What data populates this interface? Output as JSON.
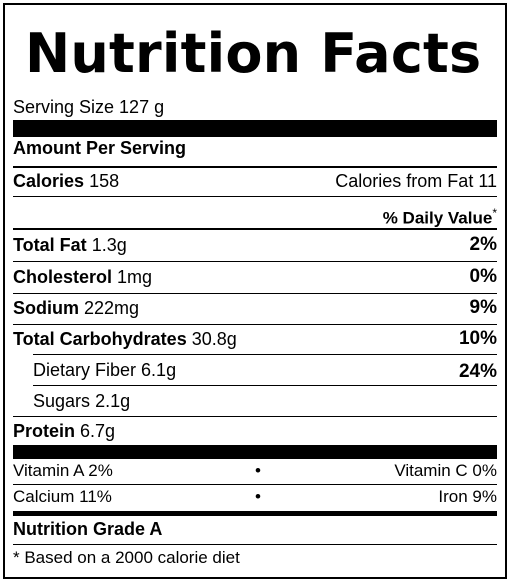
{
  "title": "Nutrition Facts",
  "serving_size": "Serving Size 127 g",
  "amount_per_serving": "Amount Per Serving",
  "calories": {
    "label": "Calories",
    "value": "158",
    "from_fat": "Calories from Fat 11"
  },
  "daily_value_header": "% Daily Value",
  "daily_value_asterisk": "*",
  "nutrients": [
    {
      "label": "Total Fat",
      "amount": "1.3g",
      "dv": "2%"
    },
    {
      "label": "Cholesterol",
      "amount": "1mg",
      "dv": "0%"
    },
    {
      "label": "Sodium",
      "amount": "222mg",
      "dv": "9%"
    },
    {
      "label": "Total Carbohydrates",
      "amount": "30.8g",
      "dv": "10%"
    },
    {
      "label": "Dietary Fiber",
      "amount": "6.1g",
      "dv": "24%"
    },
    {
      "label": "Sugars",
      "amount": "2.1g",
      "dv": ""
    },
    {
      "label": "Protein",
      "amount": "6.7g",
      "dv": ""
    }
  ],
  "vitamins": [
    {
      "left": "Vitamin A 2%",
      "bullet": "•",
      "right": "Vitamin C 0%"
    },
    {
      "left": "Calcium 11%",
      "bullet": "•",
      "right": "Iron 9%"
    }
  ],
  "grade": "Nutrition Grade A",
  "footnote": "* Based on a 2000 calorie diet"
}
